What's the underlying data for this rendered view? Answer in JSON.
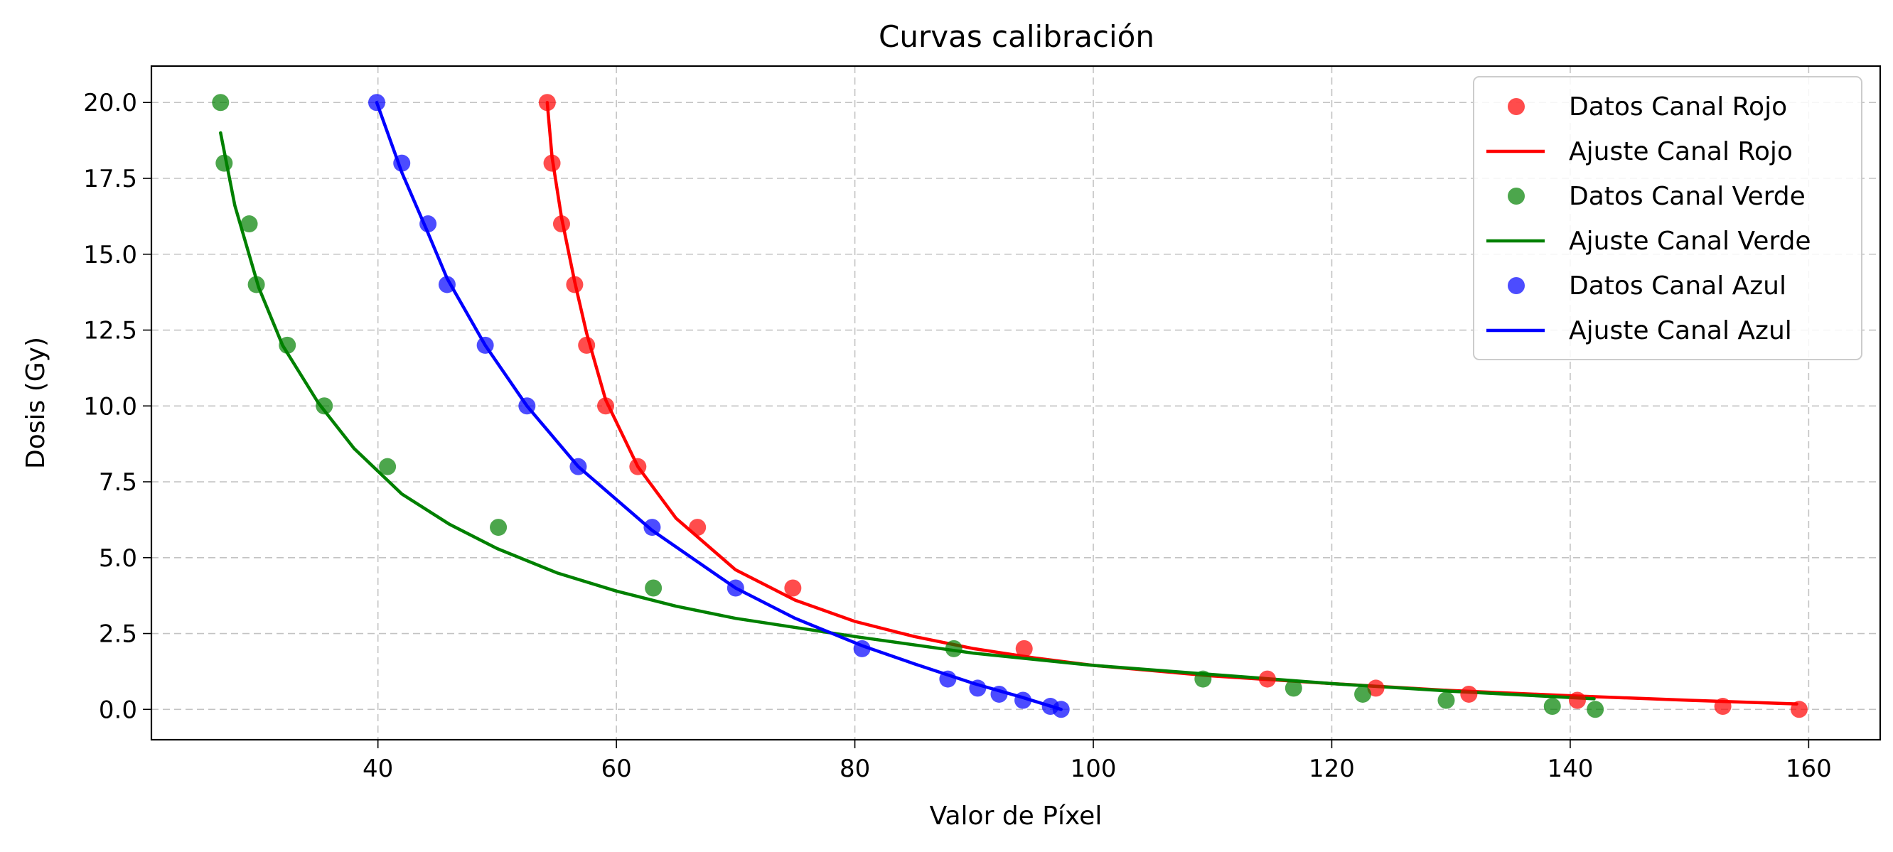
{
  "chart_data": {
    "type": "scatter",
    "title": "Curvas calibración",
    "xlabel": "Valor de Píxel",
    "ylabel": "Dosis (Gy)",
    "xlim": [
      21,
      166
    ],
    "ylim": [
      -1,
      21.2
    ],
    "x_ticks": [
      40,
      60,
      80,
      100,
      120,
      140,
      160
    ],
    "y_ticks": [
      0.0,
      2.5,
      5.0,
      7.5,
      10.0,
      12.5,
      15.0,
      17.5,
      20.0
    ],
    "x_tick_labels": [
      "40",
      "60",
      "80",
      "100",
      "120",
      "140",
      "160"
    ],
    "y_tick_labels": [
      "0.0",
      "2.5",
      "5.0",
      "7.5",
      "10.0",
      "12.5",
      "15.0",
      "17.5",
      "20.0"
    ],
    "grid": true,
    "legend_position": "top-right",
    "series": [
      {
        "name": "Datos Canal Rojo",
        "kind": "scatter",
        "color": "#ff0000",
        "x": [
          54.2,
          54.6,
          55.4,
          56.5,
          57.5,
          59.1,
          61.8,
          66.8,
          74.8,
          94.2,
          114.6,
          123.7,
          131.5,
          140.6,
          152.8,
          159.2
        ],
        "y": [
          20,
          18,
          16,
          14,
          12,
          10,
          8,
          6,
          4,
          2,
          1,
          0.7,
          0.5,
          0.3,
          0.1,
          0
        ]
      },
      {
        "name": "Ajuste Canal Rojo",
        "kind": "line",
        "color": "#ff0000",
        "x": [
          54.2,
          54.6,
          55.4,
          56.5,
          57.5,
          59.1,
          61.8,
          65,
          70,
          75,
          80,
          85,
          90,
          95,
          100,
          110,
          120,
          130,
          140,
          150,
          159
        ],
        "y": [
          20,
          18.2,
          16.2,
          14.1,
          12.4,
          10.2,
          8.0,
          6.3,
          4.6,
          3.6,
          2.9,
          2.4,
          2.0,
          1.7,
          1.45,
          1.1,
          0.85,
          0.62,
          0.45,
          0.3,
          0.18
        ]
      },
      {
        "name": "Datos Canal Verde",
        "kind": "scatter",
        "color": "#008000",
        "x": [
          26.8,
          27.1,
          29.2,
          29.8,
          32.4,
          35.5,
          40.8,
          50.1,
          63.1,
          88.3,
          109.2,
          116.8,
          122.6,
          129.6,
          138.5,
          142.1
        ],
        "y": [
          20,
          18,
          16,
          14,
          12,
          10,
          8,
          6,
          4,
          2,
          1,
          0.7,
          0.5,
          0.3,
          0.1,
          0
        ]
      },
      {
        "name": "Ajuste Canal Verde",
        "kind": "line",
        "color": "#008000",
        "x": [
          26.8,
          28,
          30,
          32,
          35,
          38,
          42,
          46,
          50,
          55,
          60,
          65,
          70,
          80,
          90,
          100,
          110,
          120,
          130,
          142
        ],
        "y": [
          19,
          16.6,
          13.9,
          12.0,
          10.1,
          8.6,
          7.1,
          6.1,
          5.3,
          4.5,
          3.9,
          3.4,
          3.0,
          2.4,
          1.85,
          1.45,
          1.15,
          0.85,
          0.6,
          0.35
        ]
      },
      {
        "name": "Datos Canal Azul",
        "kind": "scatter",
        "color": "#0000ff",
        "x": [
          39.9,
          42.0,
          44.2,
          45.8,
          49.0,
          52.5,
          56.8,
          63.0,
          70.0,
          80.6,
          87.8,
          90.3,
          92.1,
          94.1,
          96.4,
          97.3
        ],
        "y": [
          20,
          18,
          16,
          14,
          12,
          10,
          8,
          6,
          4,
          2,
          1,
          0.7,
          0.5,
          0.3,
          0.1,
          0
        ]
      },
      {
        "name": "Ajuste Canal Azul",
        "kind": "line",
        "color": "#0000ff",
        "x": [
          39.9,
          42.0,
          44.2,
          45.8,
          49.0,
          52.5,
          56.8,
          63.0,
          70.0,
          75,
          80.6,
          85,
          90,
          94,
          97.3
        ],
        "y": [
          20,
          17.7,
          15.7,
          14.2,
          12.0,
          10.0,
          8.0,
          5.9,
          4.0,
          3.0,
          2.1,
          1.5,
          0.85,
          0.4,
          0.0
        ]
      }
    ]
  }
}
